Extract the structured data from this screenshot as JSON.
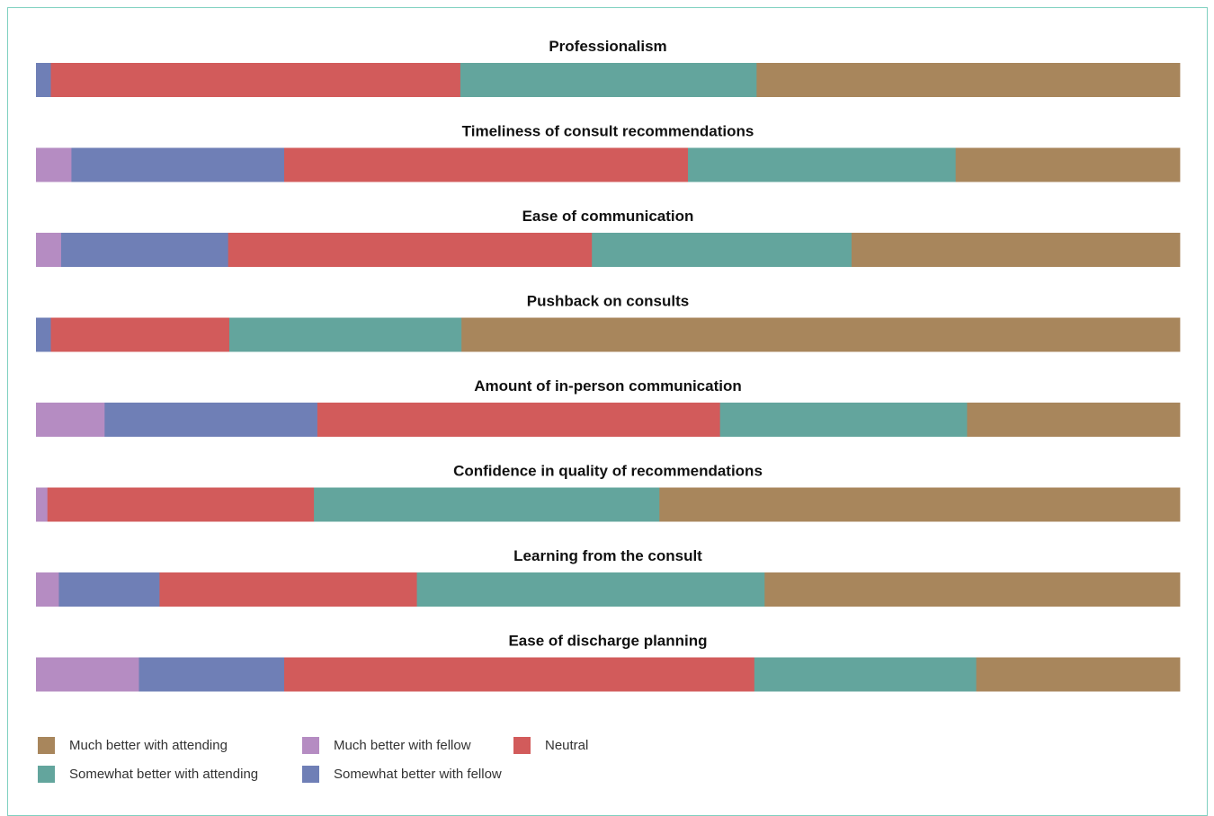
{
  "chart_data": {
    "type": "bar",
    "orientation": "horizontal",
    "stacked": "100%",
    "categories": [
      "Professionalism",
      "Timeliness of consult recommendations",
      "Ease of communication",
      "Pushback on consults",
      "Amount of in-person communication",
      "Confidence in quality of recommendations",
      "Learning from the consult",
      "Ease of discharge planning"
    ],
    "series": [
      {
        "name": "Much better with fellow",
        "color": "#b58cc2",
        "values": [
          0,
          3.1,
          2.2,
          0,
          6.0,
          1.0,
          2.0,
          9.0
        ]
      },
      {
        "name": "Somewhat better with fellow",
        "color": "#6f7fb6",
        "values": [
          1.3,
          18.6,
          14.6,
          1.3,
          18.6,
          0,
          8.8,
          12.7
        ]
      },
      {
        "name": "Neutral",
        "color": "#d25b5b",
        "values": [
          35.8,
          35.3,
          31.8,
          15.6,
          35.2,
          23.3,
          22.5,
          41.1
        ]
      },
      {
        "name": "Somewhat better with attending",
        "color": "#63a59d",
        "values": [
          25.9,
          23.4,
          22.7,
          20.3,
          21.6,
          30.2,
          30.4,
          19.4
        ]
      },
      {
        "name": "Much better with attending",
        "color": "#a8865c",
        "values": [
          37.0,
          19.6,
          28.7,
          62.8,
          18.6,
          45.5,
          36.3,
          17.8
        ]
      }
    ],
    "xlim": [
      0,
      100
    ],
    "grid": false,
    "legend_position": "bottom-left"
  },
  "legend": [
    {
      "label": "Much better with attending",
      "color": "#a8865c"
    },
    {
      "label": "Much better with fellow",
      "color": "#b58cc2"
    },
    {
      "label": "Neutral",
      "color": "#d25b5b"
    },
    {
      "label": "Somewhat better with attending",
      "color": "#63a59d"
    },
    {
      "label": "Somewhat better with fellow",
      "color": "#6f7fb6"
    }
  ]
}
